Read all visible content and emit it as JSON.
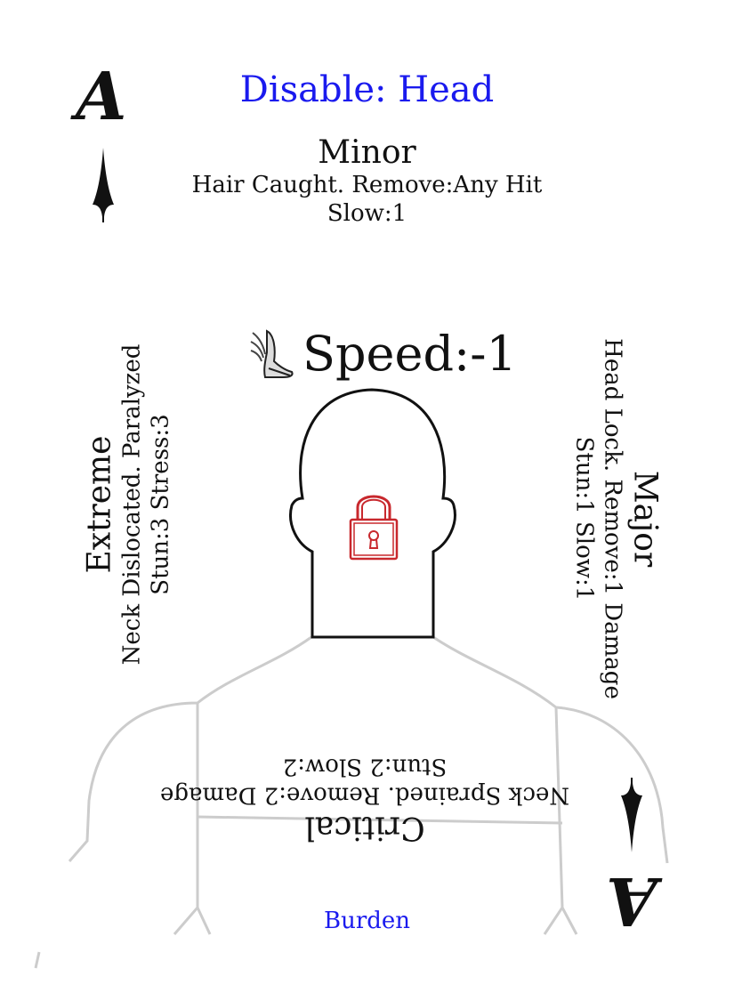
{
  "card": {
    "title": "Disable: Head",
    "rank": "A",
    "minor": {
      "title": "Minor",
      "lines": [
        "Hair Caught. Remove:Any Hit",
        "Slow:1"
      ]
    },
    "speed": {
      "icon": "winged-shoe-icon",
      "label": "Speed:-1"
    },
    "extreme": {
      "title": "Extreme",
      "lines": [
        "Neck Dislocated. Paralyzed",
        "Stun:3 Stress:3"
      ]
    },
    "major": {
      "title": "Major",
      "lines": [
        "Head Lock. Remove:1 Damage",
        "Stun:1 Slow:1"
      ]
    },
    "critical": {
      "title": "Critical",
      "lines": [
        "Neck Sprained. Remove:2 Damage",
        "Stun:2 Slow:2"
      ]
    },
    "footer": "Burden",
    "colors": {
      "title": "#1a1aee",
      "lock": "#c8282d",
      "body_outline": "#cccccc",
      "head_outline": "#111111"
    },
    "center_icon": "padlock-icon"
  }
}
